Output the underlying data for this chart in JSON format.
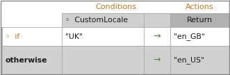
{
  "title_conditions": "Conditions",
  "title_actions": "Actions",
  "col2_header": "◦  CustomLocale",
  "col4_header": "Return",
  "row1_col1": "◦  if",
  "row1_col2": "\"UK\"",
  "row1_arrow": "→",
  "row1_col4": "\"en_GB\"",
  "row2_col1": "otherwise",
  "row2_arrow": "→",
  "row2_col4": "\"en_US\"",
  "bg_white": "#ffffff",
  "bg_light_gray": "#d0d0d0",
  "bg_dark_gray": "#b0b0b0",
  "text_orange": "#c07820",
  "text_dark": "#1a1a1a",
  "text_header_orange": "#c07820",
  "text_arrow": "#4a8a3a",
  "border_color": "#aaaaaa",
  "outer_border": "#888888",
  "accent_strip": "#aaaaaa"
}
